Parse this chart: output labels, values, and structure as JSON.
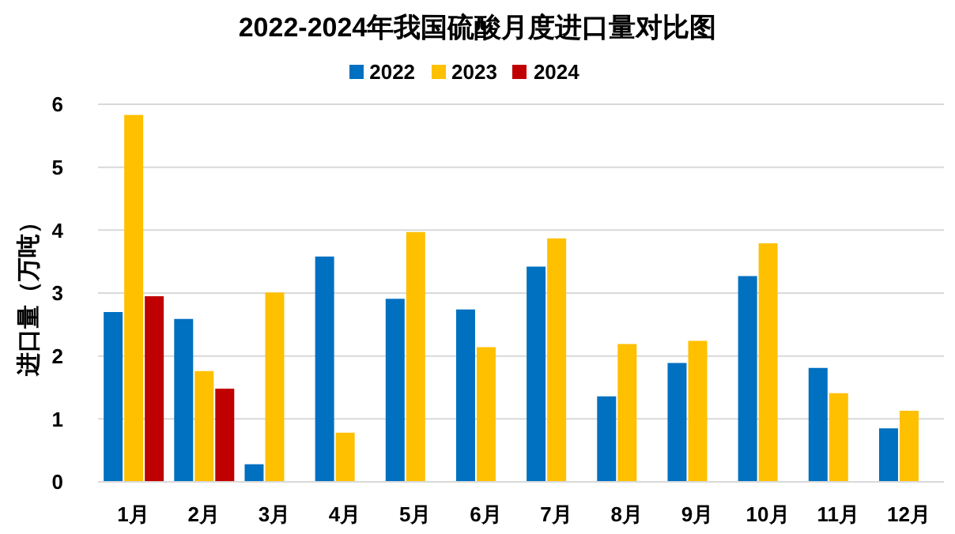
{
  "chart_data": {
    "type": "bar",
    "title": "2022-2024年我国硫酸月度进口量对比图",
    "ylabel": "进口量（万吨）",
    "categories": [
      "1月",
      "2月",
      "3月",
      "4月",
      "5月",
      "6月",
      "7月",
      "8月",
      "9月",
      "10月",
      "11月",
      "12月"
    ],
    "series": [
      {
        "name": "2022",
        "color": "#0070c0",
        "values": [
          2.7,
          2.59,
          0.28,
          3.58,
          2.91,
          2.74,
          3.42,
          1.36,
          1.89,
          3.27,
          1.81,
          0.85
        ]
      },
      {
        "name": "2023",
        "color": "#ffc000",
        "values": [
          5.83,
          1.76,
          3.01,
          0.78,
          3.97,
          2.14,
          3.87,
          2.19,
          2.24,
          3.79,
          1.41,
          1.13
        ]
      },
      {
        "name": "2024",
        "color": "#c00000",
        "values": [
          2.95,
          1.48,
          null,
          null,
          null,
          null,
          null,
          null,
          null,
          null,
          null,
          null
        ]
      }
    ],
    "ylim": [
      0,
      6
    ],
    "yticks": [
      0,
      1,
      2,
      3,
      4,
      5,
      6
    ],
    "grid": "y",
    "legend": "top"
  }
}
